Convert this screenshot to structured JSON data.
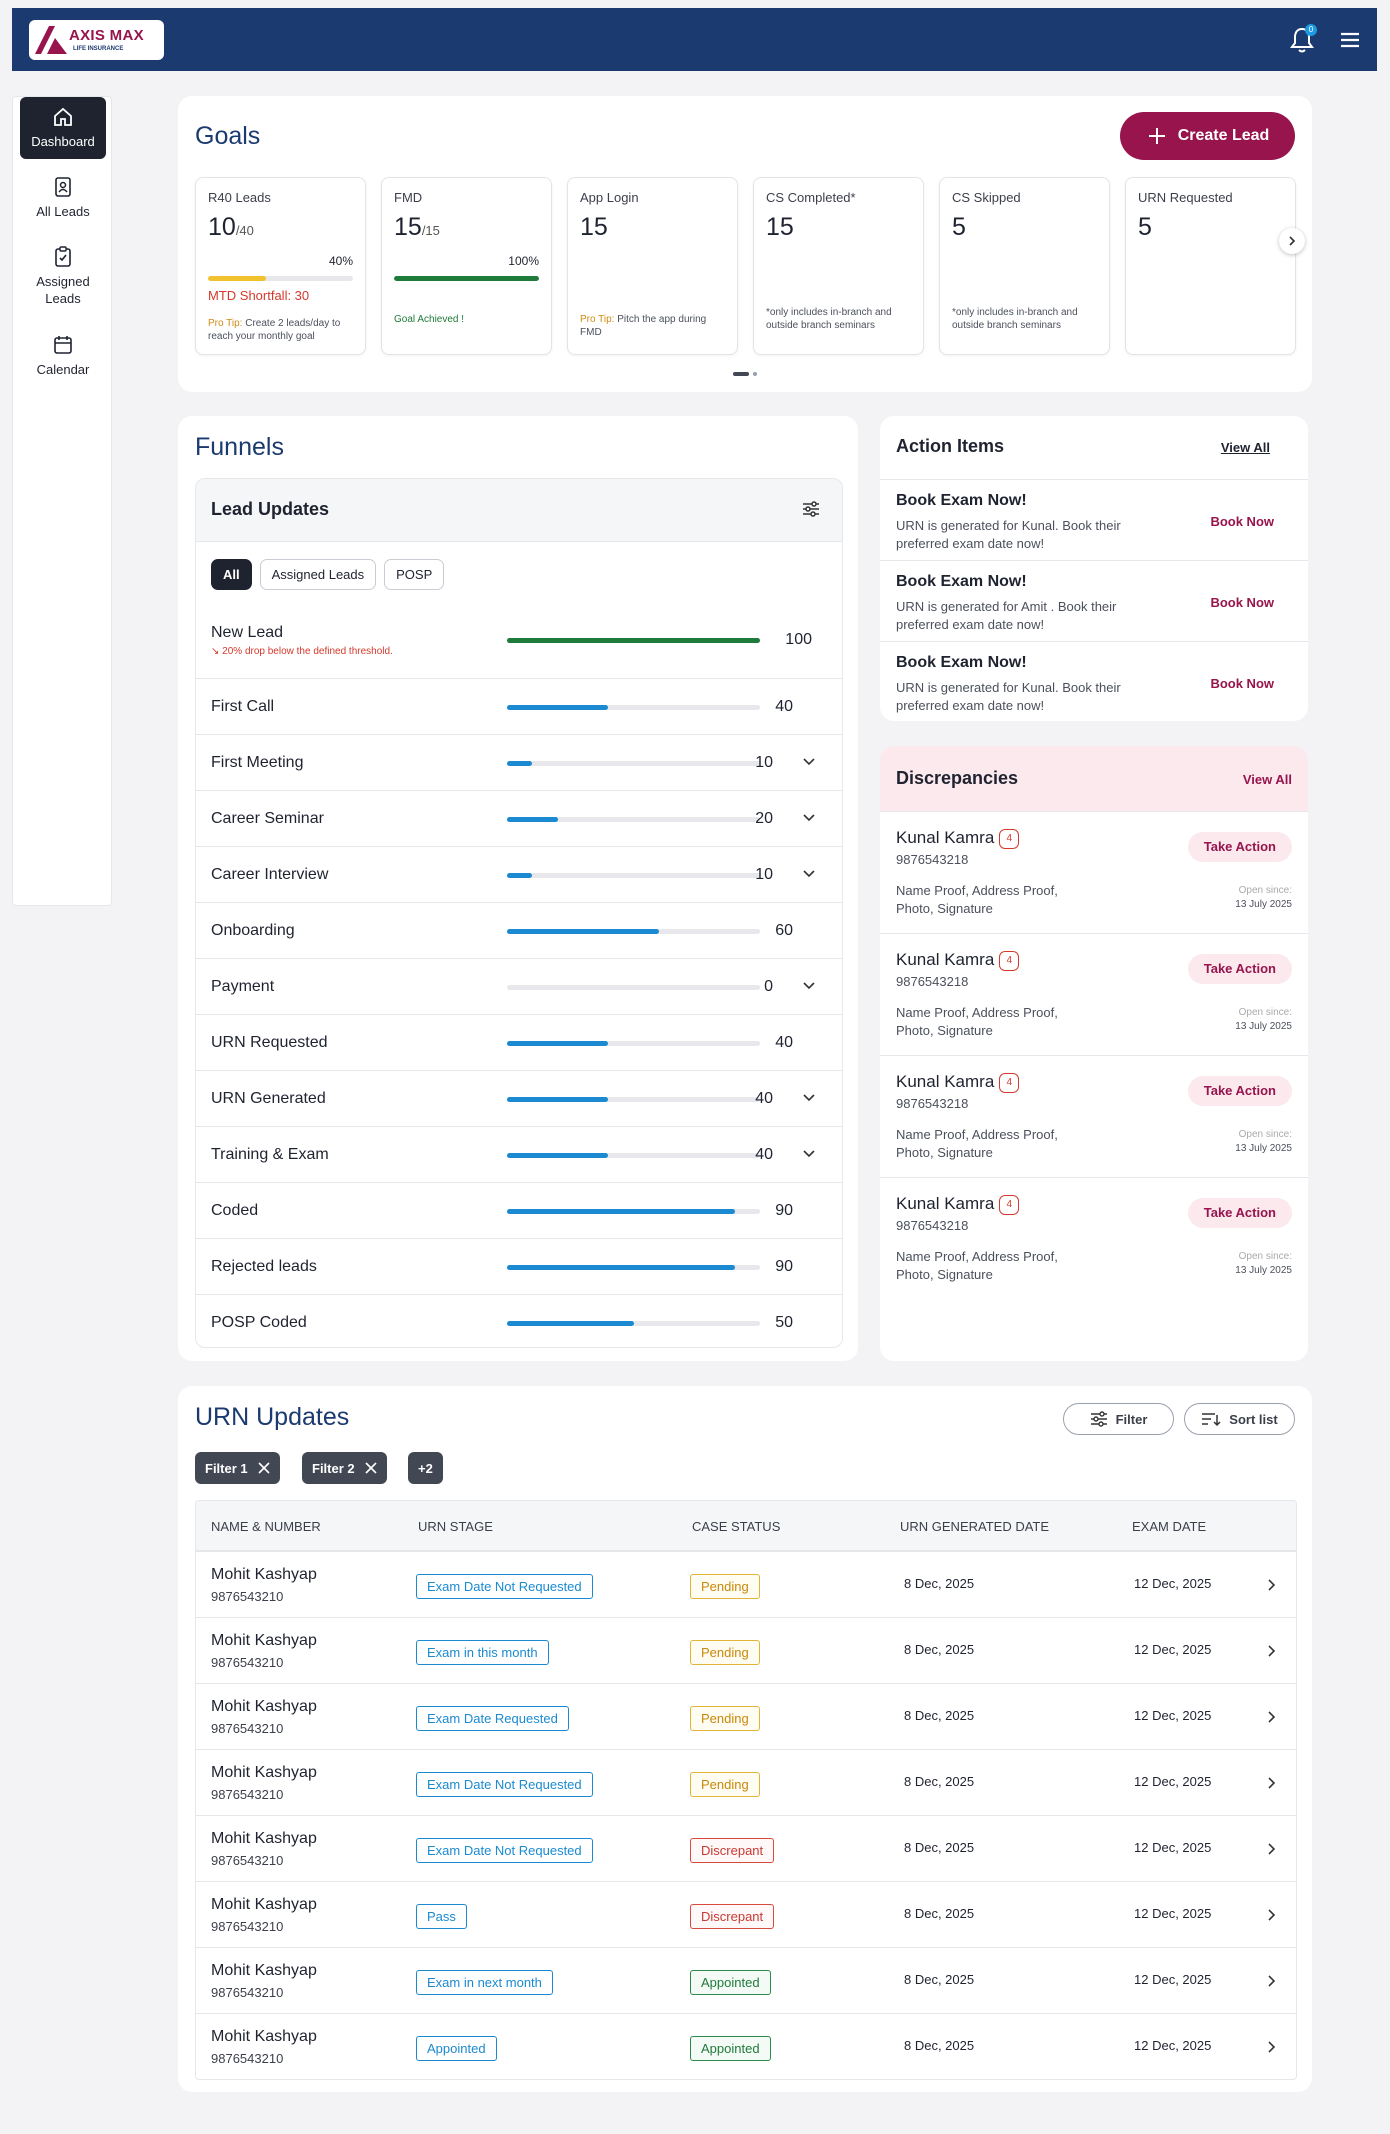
{
  "brand": {
    "name": "AXIS MAX",
    "sub": "LIFE INSURANCE",
    "notification_count": "0"
  },
  "sidebar": {
    "items": [
      {
        "label": "Dashboard",
        "icon": "home-icon"
      },
      {
        "label": "All Leads",
        "icon": "contacts-icon"
      },
      {
        "label": "Assigned Leads",
        "icon": "clipboard-check-icon"
      },
      {
        "label": "Calendar",
        "icon": "calendar-icon"
      }
    ]
  },
  "goals": {
    "title": "Goals",
    "create_label": "Create Lead",
    "cards": [
      {
        "label": "R40 Leads",
        "value": "10",
        "total": "/40",
        "percent": "40%",
        "progress": 0.4,
        "color": "#f2c12e",
        "shortfall": "MTD Shortfall: 30",
        "tip_prefix": "Pro Tip:",
        "tip": " Create 2 leads/day to reach your monthly goal"
      },
      {
        "label": "FMD",
        "value": "15",
        "total": "/15",
        "percent": "100%",
        "progress": 1.0,
        "color": "#1f7b3a",
        "achieved": "Goal Achieved !"
      },
      {
        "label": "App Login",
        "value": "15",
        "tip_prefix": "Pro Tip:",
        "tip": " Pitch the app during FMD"
      },
      {
        "label": "CS Completed*",
        "value": "15",
        "note": "*only includes in-branch and outside branch seminars"
      },
      {
        "label": "CS Skipped",
        "value": "5",
        "note": "*only includes in-branch and outside branch seminars"
      },
      {
        "label": "URN Requested",
        "value": "5"
      }
    ]
  },
  "funnels": {
    "title": "Funnels",
    "panel_title": "Lead Updates",
    "chips": [
      "All",
      "Assigned Leads",
      "POSP"
    ],
    "new_lead": {
      "label": "New Lead",
      "value": "100",
      "progress": 1.0,
      "alert": "↘ 20% drop below the defined threshold."
    },
    "rows": [
      {
        "label": "First Call",
        "value": "40",
        "progress": 0.4,
        "expand": false
      },
      {
        "label": "First Meeting",
        "value": "10",
        "progress": 0.1,
        "expand": true
      },
      {
        "label": "Career Seminar",
        "value": "20",
        "progress": 0.2,
        "expand": true
      },
      {
        "label": "Career Interview",
        "value": "10",
        "progress": 0.1,
        "expand": true
      },
      {
        "label": "Onboarding",
        "value": "60",
        "progress": 0.6,
        "expand": false
      },
      {
        "label": "Payment",
        "value": "0",
        "progress": 0,
        "expand": true
      },
      {
        "label": "URN Requested",
        "value": "40",
        "progress": 0.4,
        "expand": false
      },
      {
        "label": "URN Generated",
        "value": "40",
        "progress": 0.4,
        "expand": true
      },
      {
        "label": "Training & Exam",
        "value": "40",
        "progress": 0.4,
        "expand": true
      },
      {
        "label": "Coded",
        "value": "90",
        "progress": 0.9,
        "expand": false
      },
      {
        "label": "Rejected leads",
        "value": "90",
        "progress": 0.9,
        "expand": false
      },
      {
        "label": "POSP Coded",
        "value": "50",
        "progress": 0.5,
        "expand": false
      }
    ]
  },
  "action_items": {
    "title": "Action Items",
    "view_all": "View All",
    "items": [
      {
        "title": "Book Exam Now!",
        "desc": "URN is generated for Kunal. Book their preferred exam date now!",
        "button": "Book Now"
      },
      {
        "title": "Book Exam Now!",
        "desc": "URN is generated for Amit . Book their preferred exam date now!",
        "button": "Book Now"
      },
      {
        "title": "Book Exam Now!",
        "desc": "URN is generated for Kunal. Book their preferred exam date now!",
        "button": "Book Now"
      }
    ]
  },
  "discrepancies": {
    "title": "Discrepancies",
    "view_all": "View All",
    "items": [
      {
        "name": "Kunal Kamra",
        "count": "4",
        "phone": "9876543218",
        "docs": "Name Proof, Address Proof, Photo, Signature",
        "button": "Take Action",
        "open_label": "Open since:",
        "date": "13 July 2025"
      },
      {
        "name": "Kunal Kamra",
        "count": "4",
        "phone": "9876543218",
        "docs": "Name Proof, Address Proof, Photo, Signature",
        "button": "Take Action",
        "open_label": "Open since:",
        "date": "13 July 2025"
      },
      {
        "name": "Kunal Kamra",
        "count": "4",
        "phone": "9876543218",
        "docs": "Name Proof, Address Proof, Photo, Signature",
        "button": "Take Action",
        "open_label": "Open since:",
        "date": "13 July 2025"
      },
      {
        "name": "Kunal Kamra",
        "count": "4",
        "phone": "9876543218",
        "docs": "Name Proof, Address Proof, Photo, Signature",
        "button": "Take Action",
        "open_label": "Open since:",
        "date": "13 July 2025"
      }
    ]
  },
  "urn": {
    "title": "URN Updates",
    "filter_label": "Filter",
    "sort_label": "Sort list",
    "filters": [
      "Filter 1",
      "Filter 2"
    ],
    "more": "+2",
    "headers": [
      "NAME & NUMBER",
      "URN STAGE",
      "CASE STATUS",
      "URN GENERATED DATE",
      "EXAM DATE"
    ],
    "rows": [
      {
        "name": "Mohit Kashyap",
        "phone": "9876543210",
        "stage": "Exam Date Not Requested",
        "status": "Pending",
        "status_type": "pending",
        "gen": "8 Dec, 2025",
        "exam": "12 Dec, 2025"
      },
      {
        "name": "Mohit Kashyap",
        "phone": "9876543210",
        "stage": "Exam in this month",
        "status": "Pending",
        "status_type": "pending",
        "gen": "8 Dec, 2025",
        "exam": "12 Dec, 2025"
      },
      {
        "name": "Mohit Kashyap",
        "phone": "9876543210",
        "stage": "Exam Date Requested",
        "status": "Pending",
        "status_type": "pending",
        "gen": "8 Dec, 2025",
        "exam": "12 Dec, 2025"
      },
      {
        "name": "Mohit Kashyap",
        "phone": "9876543210",
        "stage": "Exam Date Not Requested",
        "status": "Pending",
        "status_type": "pending",
        "gen": "8 Dec, 2025",
        "exam": "12 Dec, 2025"
      },
      {
        "name": "Mohit Kashyap",
        "phone": "9876543210",
        "stage": "Exam Date Not Requested",
        "status": "Discrepant",
        "status_type": "disc",
        "gen": "8 Dec, 2025",
        "exam": "12 Dec, 2025"
      },
      {
        "name": "Mohit Kashyap",
        "phone": "9876543210",
        "stage": "Pass",
        "status": "Discrepant",
        "status_type": "disc",
        "gen": "8 Dec, 2025",
        "exam": "12 Dec, 2025"
      },
      {
        "name": "Mohit Kashyap",
        "phone": "9876543210",
        "stage": "Exam in next month",
        "status": "Appointed",
        "status_type": "app",
        "gen": "8 Dec, 2025",
        "exam": "12 Dec, 2025"
      },
      {
        "name": "Mohit Kashyap",
        "phone": "9876543210",
        "stage": "Appointed",
        "status": "Appointed",
        "status_type": "app",
        "gen": "8 Dec, 2025",
        "exam": "12 Dec, 2025"
      }
    ]
  }
}
